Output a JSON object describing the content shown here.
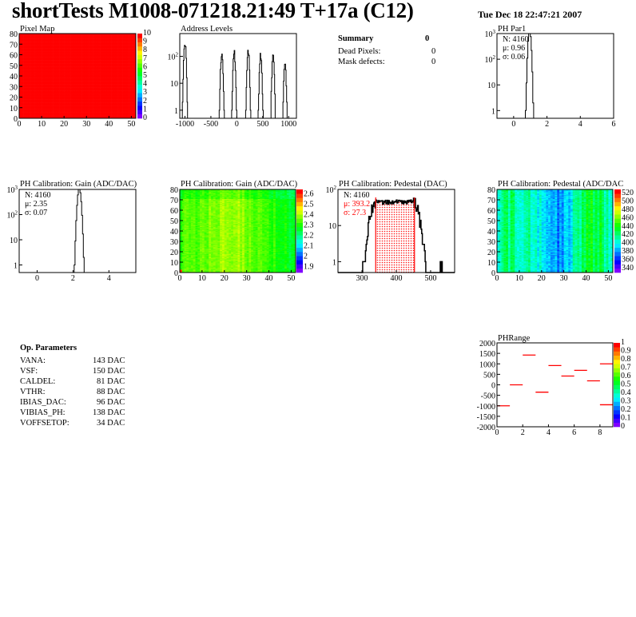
{
  "header": {
    "title": "shortTests M1008-071218.21:49 T+17a (C12)",
    "date": "Tue Dec 18 22:47:21 2007"
  },
  "summary": {
    "title": "Summary",
    "total": "0",
    "rows": [
      {
        "label": "Dead Pixels:",
        "value": "0"
      },
      {
        "label": "Mask defects:",
        "value": "0"
      }
    ]
  },
  "op_parameters": {
    "title": "Op. Parameters",
    "rows": [
      {
        "label": "VANA:",
        "value": "143 DAC"
      },
      {
        "label": "VSF:",
        "value": "150 DAC"
      },
      {
        "label": "CALDEL:",
        "value": "81 DAC"
      },
      {
        "label": "VTHR:",
        "value": "88 DAC"
      },
      {
        "label": "IBIAS_DAC:",
        "value": "96 DAC"
      },
      {
        "label": "VIBIAS_PH:",
        "value": "138 DAC"
      },
      {
        "label": "VOFFSETOP:",
        "value": "34 DAC"
      }
    ]
  },
  "chart_data": [
    {
      "id": "pixelmap",
      "type": "heatmap",
      "title": "Pixel Map",
      "xlim": [
        0,
        52
      ],
      "ylim": [
        0,
        80
      ],
      "zlim": [
        0,
        10
      ],
      "xticks": [
        "0",
        "10",
        "20",
        "30",
        "40",
        "50"
      ],
      "yticks": [
        "0",
        "10",
        "20",
        "30",
        "40",
        "50",
        "60",
        "70",
        "80"
      ],
      "zticks": [
        "0",
        "1",
        "2",
        "3",
        "4",
        "5",
        "6",
        "7",
        "8",
        "9",
        "10"
      ],
      "uniform_value": 10
    },
    {
      "id": "address",
      "type": "bar",
      "title": "Address Levels",
      "xlim": [
        -1100,
        1150
      ],
      "ylim": [
        0.5,
        700
      ],
      "log_y": true,
      "xticks": [
        "-1000",
        "-500",
        "0",
        "500",
        "1000"
      ],
      "yticks": [
        "1",
        "10",
        "10^2"
      ],
      "peaks": [
        [
          -1000,
          420
        ],
        [
          -290,
          170
        ],
        [
          -50,
          180
        ],
        [
          220,
          190
        ],
        [
          460,
          140
        ],
        [
          700,
          125
        ],
        [
          930,
          60
        ]
      ]
    },
    {
      "id": "phpar1",
      "type": "bar",
      "title": "PH Par1",
      "xlim": [
        -1,
        6
      ],
      "ylim": [
        0.5,
        1000
      ],
      "log_y": true,
      "xticks": [
        "0",
        "2",
        "4",
        "6"
      ],
      "yticks": [
        "1",
        "10",
        "10^2",
        "10^3"
      ],
      "stats": {
        "N": "N: 4160",
        "mu": "μ: 0.96",
        "sigma": "σ: 0.06"
      },
      "n": 4160,
      "mean": 0.96,
      "rms": 0.06
    },
    {
      "id": "gainhist",
      "type": "bar",
      "title": "PH Calibration: Gain (ADC/DAC)",
      "xlim": [
        -1,
        5.5
      ],
      "ylim": [
        0.5,
        1000
      ],
      "log_y": true,
      "xticks": [
        "0",
        "2",
        "4"
      ],
      "yticks": [
        "1",
        "10",
        "10^2",
        "10^3"
      ],
      "stats": {
        "N": "N: 4160",
        "mu": "μ: 2.35",
        "sigma": "σ: 0.07"
      },
      "n": 4160,
      "mean": 2.35,
      "rms": 0.07
    },
    {
      "id": "gainmap",
      "type": "heatmap",
      "title": "PH Calibration: Gain (ADC/DAC)",
      "xlim": [
        0,
        52
      ],
      "ylim": [
        0,
        80
      ],
      "zlim": [
        1.85,
        2.65
      ],
      "xticks": [
        "0",
        "10",
        "20",
        "30",
        "40",
        "50"
      ],
      "yticks": [
        "0",
        "10",
        "20",
        "30",
        "40",
        "50",
        "60",
        "70",
        "80"
      ],
      "zticks": [
        "1.9",
        "2",
        "2.1",
        "2.2",
        "2.3",
        "2.4",
        "2.5",
        "2.6"
      ],
      "typical": 2.4
    },
    {
      "id": "pedhist",
      "type": "bar",
      "title": "PH Calibration: Pedestal (DAC)",
      "xlim": [
        230,
        570
      ],
      "ylim": [
        0.5,
        100
      ],
      "log_y": true,
      "xticks": [
        "300",
        "400",
        "500"
      ],
      "yticks": [
        "1",
        "10",
        "10^2"
      ],
      "stats": {
        "N": "N: 4160",
        "mu": "μ: 393.2",
        "sigma": "σ: 27.3"
      },
      "n": 4160,
      "mean": 393.2,
      "rms": 27.3,
      "fit_range": [
        340,
        453
      ],
      "fit_color": "#ff0000"
    },
    {
      "id": "pedmap",
      "type": "heatmap",
      "title": "PH Calibration: Pedestal (ADC/DAC",
      "xlim": [
        0,
        52
      ],
      "ylim": [
        0,
        80
      ],
      "zlim": [
        330,
        530
      ],
      "xticks": [
        "0",
        "10",
        "20",
        "30",
        "40",
        "50"
      ],
      "yticks": [
        "0",
        "10",
        "20",
        "30",
        "40",
        "50",
        "60",
        "70",
        "80"
      ],
      "zticks": [
        "340",
        "360",
        "380",
        "400",
        "420",
        "440",
        "460",
        "480",
        "500",
        "520"
      ],
      "typical": 395
    },
    {
      "id": "phrange",
      "type": "heatmap",
      "title": "PHRange",
      "xlim": [
        0,
        9
      ],
      "ylim": [
        -2000,
        2000
      ],
      "zlim": [
        0,
        1
      ],
      "xticks": [
        "0",
        "2",
        "4",
        "6",
        "8"
      ],
      "yticks": [
        "-2000",
        "-1500",
        "-1000",
        "-500",
        "0",
        "500",
        "1000",
        "1500",
        "2000"
      ],
      "zticks": [
        "0",
        "0.1",
        "0.2",
        "0.3",
        "0.4",
        "0.5",
        "0.6",
        "0.7",
        "0.8",
        "0.9",
        "1"
      ],
      "segments": [
        [
          0,
          -1000
        ],
        [
          1,
          0
        ],
        [
          2,
          1420
        ],
        [
          3,
          -350
        ],
        [
          4,
          920
        ],
        [
          5,
          420
        ],
        [
          6,
          690
        ],
        [
          7,
          190
        ],
        [
          8,
          1000
        ],
        [
          8,
          -950
        ]
      ],
      "segment_color": "#ff0000"
    }
  ]
}
